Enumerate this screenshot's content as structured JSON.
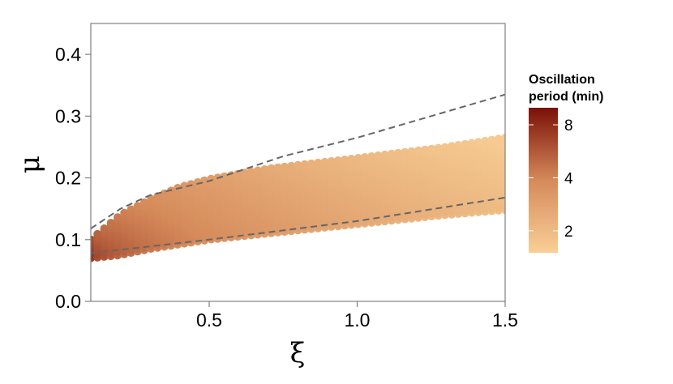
{
  "chart_data": {
    "type": "scatter",
    "title": "",
    "xlabel": "ξ",
    "ylabel": "μ",
    "xlim": [
      0.1,
      1.5
    ],
    "ylim": [
      0.0,
      0.45
    ],
    "x_ticks": [
      {
        "value": 0.5,
        "label": "0.5"
      },
      {
        "value": 1.0,
        "label": "1.0"
      },
      {
        "value": 1.5,
        "label": "1.5"
      }
    ],
    "y_ticks": [
      {
        "value": 0.0,
        "label": "0.0"
      },
      {
        "value": 0.1,
        "label": "0.1"
      },
      {
        "value": 0.2,
        "label": "0.2"
      },
      {
        "value": 0.3,
        "label": "0.3"
      },
      {
        "value": 0.4,
        "label": "0.4"
      }
    ],
    "grid": false,
    "point_cloud": {
      "x_range": [
        0.1,
        1.5
      ],
      "upper_edge": [
        [
          0.1,
          0.1
        ],
        [
          0.2,
          0.14
        ],
        [
          0.3,
          0.165
        ],
        [
          0.4,
          0.185
        ],
        [
          0.5,
          0.198
        ],
        [
          0.7,
          0.215
        ],
        [
          1.0,
          0.232
        ],
        [
          1.3,
          0.25
        ],
        [
          1.5,
          0.265
        ]
      ],
      "lower_edge": [
        [
          0.1,
          0.07
        ],
        [
          0.2,
          0.075
        ],
        [
          0.3,
          0.085
        ],
        [
          0.5,
          0.1
        ],
        [
          0.7,
          0.11
        ],
        [
          1.0,
          0.125
        ],
        [
          1.3,
          0.14
        ],
        [
          1.5,
          0.148
        ]
      ]
    },
    "reference_lines": [
      {
        "style": "dashed",
        "points": [
          [
            0.1,
            0.118
          ],
          [
            0.2,
            0.15
          ],
          [
            0.3,
            0.172
          ],
          [
            0.5,
            0.195
          ],
          [
            0.75,
            0.235
          ],
          [
            1.0,
            0.265
          ],
          [
            1.25,
            0.3
          ],
          [
            1.5,
            0.335
          ]
        ]
      },
      {
        "style": "dashed",
        "points": [
          [
            0.1,
            0.078
          ],
          [
            0.5,
            0.1
          ],
          [
            1.0,
            0.13
          ],
          [
            1.5,
            0.168
          ]
        ]
      }
    ],
    "colorbar": {
      "title_lines": [
        "Oscillation",
        "period (min)"
      ],
      "range": [
        1.5,
        10
      ],
      "scale": "log",
      "ticks": [
        {
          "value": 2,
          "label": "2"
        },
        {
          "value": 4,
          "label": "4"
        },
        {
          "value": 8,
          "label": "8"
        }
      ],
      "colors": {
        "low": "#f8cf96",
        "mid": "#d58a5a",
        "high": "#7a1008"
      }
    }
  }
}
